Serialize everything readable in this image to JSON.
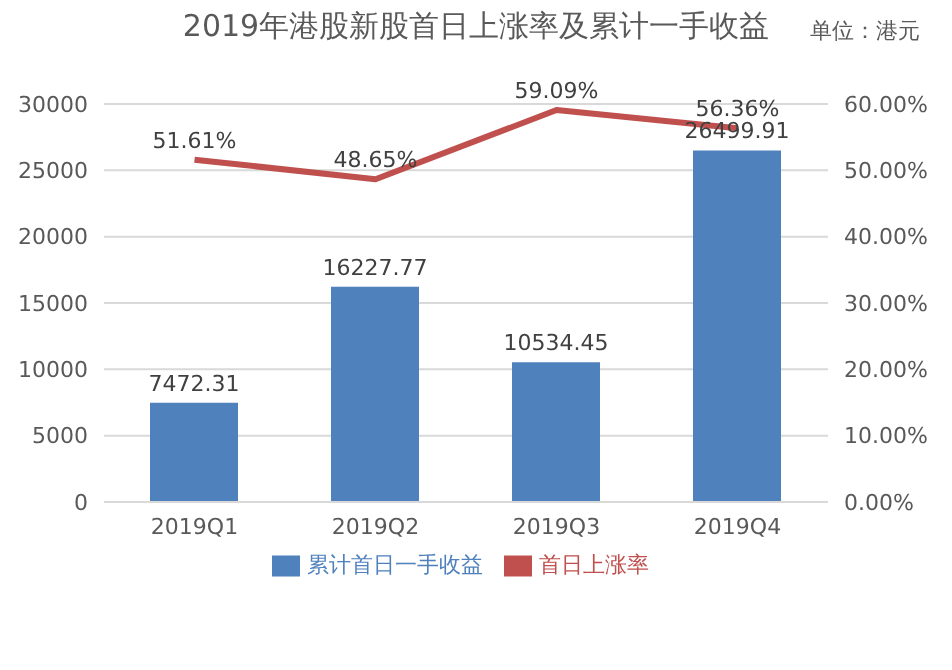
{
  "chart_data": {
    "type": "bar",
    "title": "2019年港股新股首日上涨率及累计一手收益",
    "annotations": [
      "单位：港元"
    ],
    "categories": [
      "2019Q1",
      "2019Q2",
      "2019Q3",
      "2019Q4"
    ],
    "series": [
      {
        "name": "累计首日一手收益",
        "color": "#4f81bd",
        "values": [
          7472.31,
          16227.77,
          10534.45,
          26499.91
        ],
        "value_labels": [
          "7472.31",
          "16227.77",
          "10534.45",
          "26499.91"
        ]
      },
      {
        "name": "首日上涨率",
        "type": "line",
        "axis": "y2",
        "color": "#c0504d",
        "values": [
          51.61,
          48.65,
          59.09,
          56.36
        ],
        "value_labels": [
          "51.61%",
          "48.65%",
          "59.09%",
          "56.36%"
        ]
      }
    ],
    "ylim": [
      0,
      30000
    ],
    "yticks": [
      0,
      5000,
      10000,
      15000,
      20000,
      25000,
      30000
    ],
    "y2lim": [
      0,
      60
    ],
    "y2ticks": [
      {
        "value": 0,
        "label": "0.00%"
      },
      {
        "value": 10,
        "label": "10.00%"
      },
      {
        "value": 20,
        "label": "20.00%"
      },
      {
        "value": 30,
        "label": "30.00%"
      },
      {
        "value": 40,
        "label": "40.00%"
      },
      {
        "value": 50,
        "label": "50.00%"
      },
      {
        "value": 60,
        "label": "60.00%"
      }
    ],
    "grid": "y",
    "legend": "bottom",
    "marker": "none",
    "line_style": "solid"
  }
}
